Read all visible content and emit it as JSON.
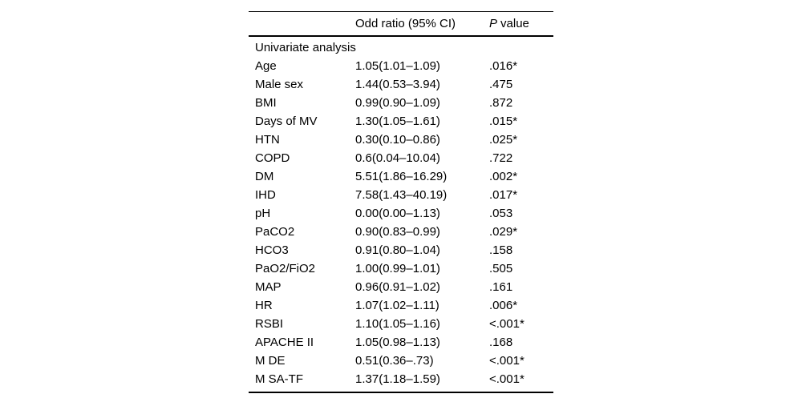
{
  "chart_data": {
    "type": "table",
    "columns": [
      "",
      "Odd ratio (95% CI)",
      "P value"
    ],
    "p_column_header": {
      "italic": "P",
      "rest": "value"
    },
    "section_header": "Univariate analysis",
    "layout": {
      "grid": "off",
      "borders": "top rule, header rule, bottom rule",
      "background": "#ffffff",
      "text_color": "#000000"
    },
    "rows": [
      {
        "label": "Age",
        "odd_ratio": "1.05(1.01–1.09)",
        "p_value": ".016*"
      },
      {
        "label": "Male sex",
        "odd_ratio": "1.44(0.53–3.94)",
        "p_value": ".475"
      },
      {
        "label": "BMI",
        "odd_ratio": "0.99(0.90–1.09)",
        "p_value": ".872"
      },
      {
        "label": "Days of MV",
        "odd_ratio": "1.30(1.05–1.61)",
        "p_value": ".015*"
      },
      {
        "label": "HTN",
        "odd_ratio": "0.30(0.10–0.86)",
        "p_value": ".025*"
      },
      {
        "label": "COPD",
        "odd_ratio": "0.6(0.04–10.04)",
        "p_value": ".722"
      },
      {
        "label": "DM",
        "odd_ratio": "5.51(1.86–16.29)",
        "p_value": ".002*"
      },
      {
        "label": "IHD",
        "odd_ratio": "7.58(1.43–40.19)",
        "p_value": ".017*"
      },
      {
        "label": "pH",
        "odd_ratio": "0.00(0.00–1.13)",
        "p_value": ".053"
      },
      {
        "label": "PaCO2",
        "odd_ratio": "0.90(0.83–0.99)",
        "p_value": ".029*"
      },
      {
        "label": "HCO3",
        "odd_ratio": "0.91(0.80–1.04)",
        "p_value": ".158"
      },
      {
        "label": "PaO2/FiO2",
        "odd_ratio": "1.00(0.99–1.01)",
        "p_value": ".505"
      },
      {
        "label": "MAP",
        "odd_ratio": "0.96(0.91–1.02)",
        "p_value": ".161"
      },
      {
        "label": "HR",
        "odd_ratio": "1.07(1.02–1.11)",
        "p_value": ".006*"
      },
      {
        "label": "RSBI",
        "odd_ratio": "1.10(1.05–1.16)",
        "p_value": "<.001*"
      },
      {
        "label": "APACHE II",
        "odd_ratio": "1.05(0.98–1.13)",
        "p_value": ".168"
      },
      {
        "label": "M DE",
        "odd_ratio": "0.51(0.36–.73)",
        "p_value": "<.001*"
      },
      {
        "label": "M SA-TF",
        "odd_ratio": "1.37(1.18–1.59)",
        "p_value": "<.001*"
      }
    ]
  }
}
